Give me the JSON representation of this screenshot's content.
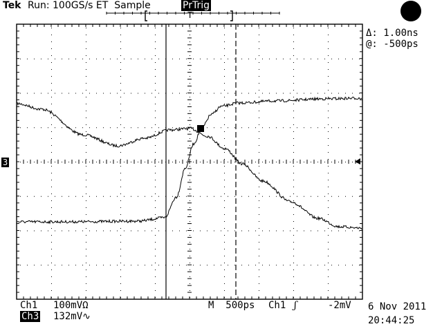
{
  "header": {
    "brand": "Tek",
    "run_status": "Run: 100GS/s ET  Sample",
    "trigger_state": "PrTrig",
    "trigger_marker": "T"
  },
  "cursor_readout": {
    "delta": "Δ: 1.00ns",
    "at": "@: -500ps"
  },
  "ground_marker": "3",
  "footer": {
    "ch1_label": "Ch1",
    "ch1_scale": "100mVΩ",
    "ch3_label": "Ch3",
    "ch3_scale": "132mV∿",
    "timebase": "M  500ps",
    "trigger_source": "Ch1",
    "trigger_slope": "ʃ",
    "trigger_level": "-2mV",
    "date": "6 Nov 2011",
    "time": "20:44:25"
  }
}
